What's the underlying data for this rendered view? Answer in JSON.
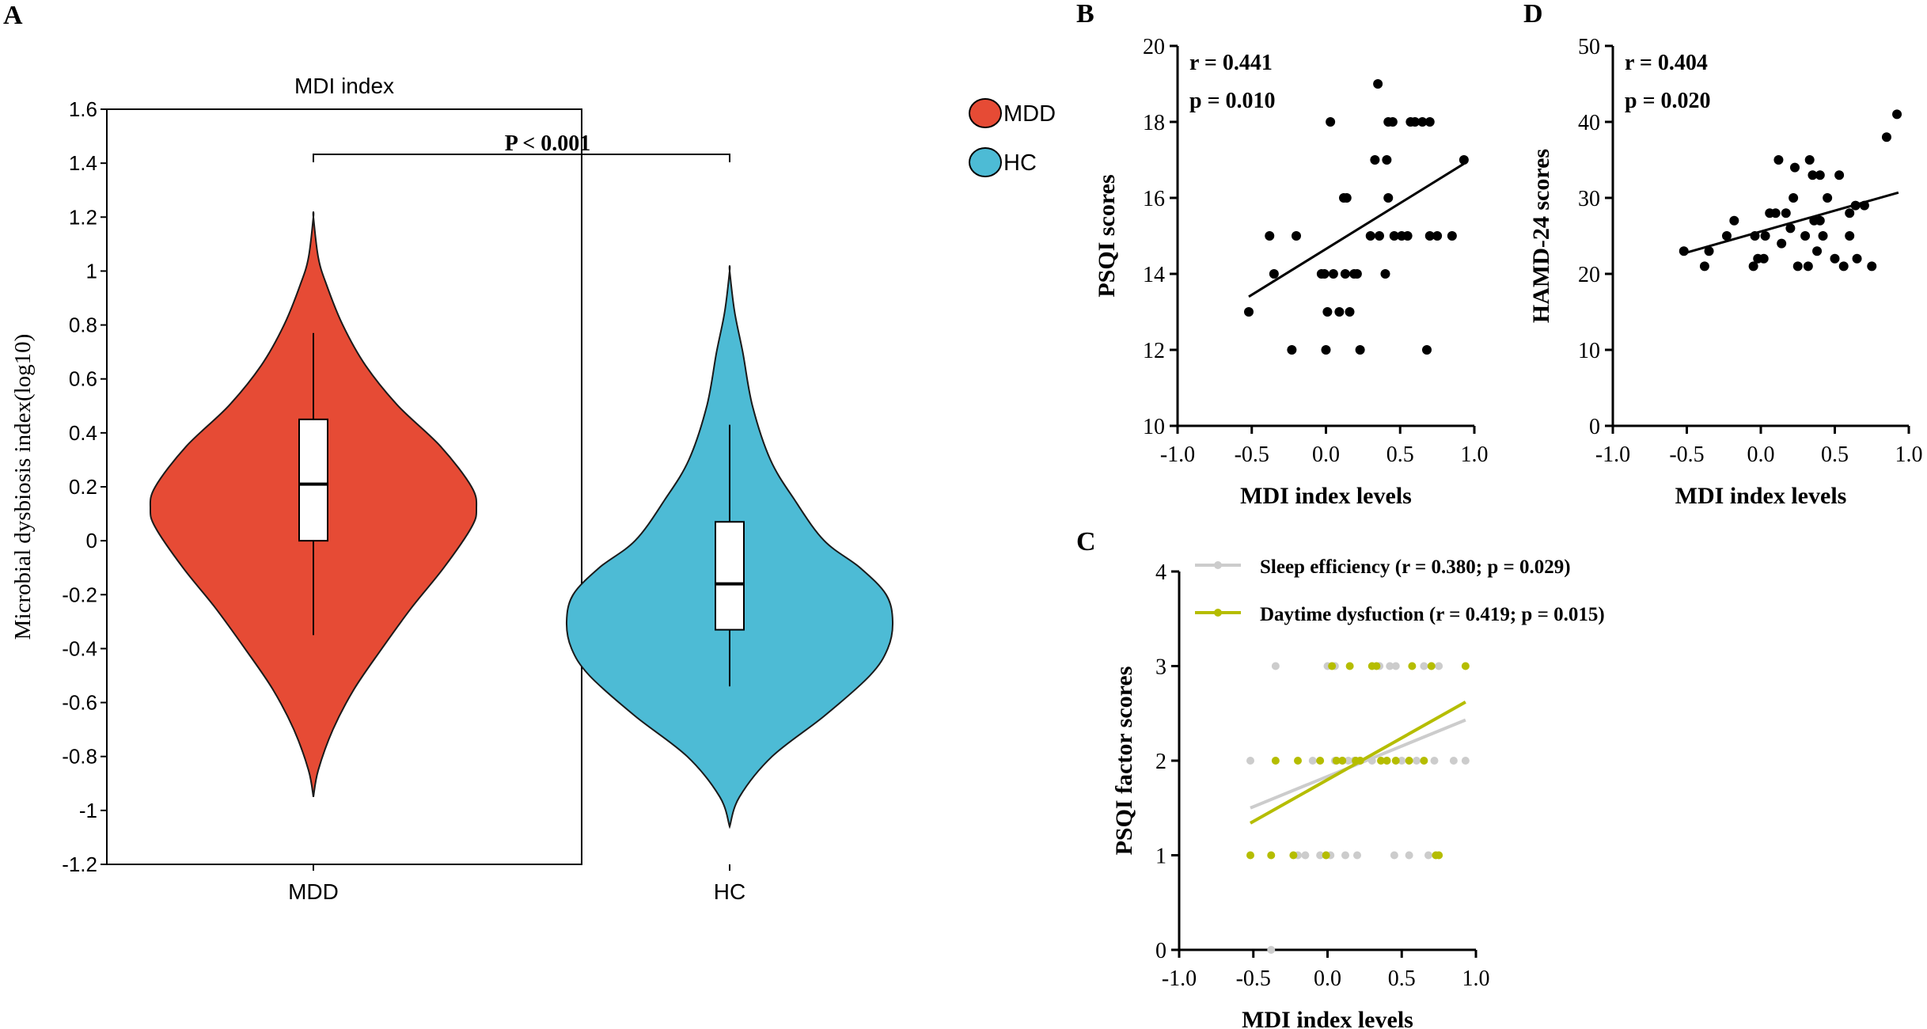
{
  "chart_data": [
    {
      "panel": "A",
      "type": "violin",
      "title": "MDI index",
      "xlabel": "",
      "ylabel": "Microbial dysbiosis index(log10)",
      "ylim": [
        -1.2,
        1.6
      ],
      "yticks": [
        "1.6",
        "1.4",
        "1.2",
        "1",
        "0.8",
        "0.6",
        "0.4",
        "0.2",
        "0",
        "-0.2",
        "-0.4",
        "-0.6",
        "-0.8",
        "-1",
        "-1.2"
      ],
      "categories": [
        "MDD",
        "HC"
      ],
      "significance": "P < 0.001",
      "legend": [
        {
          "label": "MDD",
          "color": "#E64B35"
        },
        {
          "label": "HC",
          "color": "#4DBBD5"
        }
      ],
      "groups": [
        {
          "name": "MDD",
          "color": "#E64B35",
          "whisker_low": -0.35,
          "q1": 0.0,
          "median": 0.21,
          "q3": 0.45,
          "whisker_high": 0.77,
          "violin_range": [
            -0.95,
            1.2
          ],
          "density": [
            [
              -0.95,
              0.0
            ],
            [
              -0.85,
              0.03
            ],
            [
              -0.7,
              0.12
            ],
            [
              -0.55,
              0.25
            ],
            [
              -0.4,
              0.42
            ],
            [
              -0.25,
              0.6
            ],
            [
              -0.1,
              0.8
            ],
            [
              0.05,
              0.97
            ],
            [
              0.12,
              1.0
            ],
            [
              0.2,
              0.97
            ],
            [
              0.35,
              0.78
            ],
            [
              0.5,
              0.52
            ],
            [
              0.65,
              0.32
            ],
            [
              0.8,
              0.18
            ],
            [
              0.95,
              0.08
            ],
            [
              1.05,
              0.03
            ],
            [
              1.2,
              0.0
            ]
          ]
        },
        {
          "name": "HC",
          "color": "#4DBBD5",
          "whisker_low": -0.54,
          "q1": -0.33,
          "median": -0.16,
          "q3": 0.07,
          "whisker_high": 0.43,
          "violin_range": [
            -1.06,
            1.0
          ],
          "density": [
            [
              -1.06,
              0.0
            ],
            [
              -0.95,
              0.06
            ],
            [
              -0.8,
              0.26
            ],
            [
              -0.65,
              0.58
            ],
            [
              -0.5,
              0.86
            ],
            [
              -0.4,
              0.97
            ],
            [
              -0.3,
              1.0
            ],
            [
              -0.2,
              0.96
            ],
            [
              -0.1,
              0.8
            ],
            [
              0.0,
              0.58
            ],
            [
              0.15,
              0.4
            ],
            [
              0.3,
              0.25
            ],
            [
              0.5,
              0.14
            ],
            [
              0.7,
              0.08
            ],
            [
              0.85,
              0.03
            ],
            [
              1.0,
              0.0
            ]
          ]
        }
      ]
    },
    {
      "panel": "B",
      "type": "scatter",
      "xlabel": "MDI index levels",
      "ylabel": "PSQI scores",
      "xlim": [
        -1.0,
        1.0
      ],
      "ylim": [
        10,
        20
      ],
      "xticks": [
        "-1.0",
        "-0.5",
        "0.0",
        "0.5",
        "1.0"
      ],
      "yticks": [
        "10",
        "12",
        "14",
        "16",
        "18",
        "20"
      ],
      "annotation": [
        "r = 0.441",
        "p = 0.010"
      ],
      "fit_line": {
        "x": [
          -0.52,
          0.93
        ],
        "y": [
          13.4,
          16.9
        ]
      },
      "points": [
        [
          -0.52,
          13
        ],
        [
          -0.38,
          15
        ],
        [
          -0.35,
          14
        ],
        [
          -0.23,
          12
        ],
        [
          -0.2,
          15
        ],
        [
          -0.03,
          14
        ],
        [
          -0.01,
          14
        ],
        [
          0.0,
          12
        ],
        [
          0.01,
          13
        ],
        [
          0.03,
          18
        ],
        [
          0.05,
          14
        ],
        [
          0.09,
          13
        ],
        [
          0.12,
          16
        ],
        [
          0.13,
          14
        ],
        [
          0.14,
          16
        ],
        [
          0.16,
          13
        ],
        [
          0.19,
          14
        ],
        [
          0.21,
          14
        ],
        [
          0.23,
          12
        ],
        [
          0.3,
          15
        ],
        [
          0.33,
          17
        ],
        [
          0.35,
          19
        ],
        [
          0.36,
          15
        ],
        [
          0.4,
          14
        ],
        [
          0.41,
          17
        ],
        [
          0.42,
          16
        ],
        [
          0.42,
          18
        ],
        [
          0.45,
          18
        ],
        [
          0.46,
          15
        ],
        [
          0.51,
          15
        ],
        [
          0.55,
          15
        ],
        [
          0.57,
          18
        ],
        [
          0.6,
          18
        ],
        [
          0.65,
          18
        ],
        [
          0.68,
          12
        ],
        [
          0.7,
          15
        ],
        [
          0.7,
          18
        ],
        [
          0.75,
          15
        ],
        [
          0.85,
          15
        ],
        [
          0.93,
          17
        ]
      ]
    },
    {
      "panel": "D",
      "type": "scatter",
      "xlabel": "MDI index levels",
      "ylabel": "HAMD-24 scores",
      "xlim": [
        -1.0,
        1.0
      ],
      "ylim": [
        0,
        50
      ],
      "xticks": [
        "-1.0",
        "-0.5",
        "0.0",
        "0.5",
        "1.0"
      ],
      "yticks": [
        "0",
        "10",
        "20",
        "30",
        "40",
        "50"
      ],
      "annotation": [
        "r = 0.404",
        "p = 0.020"
      ],
      "fit_line": {
        "x": [
          -0.52,
          0.93
        ],
        "y": [
          22.7,
          30.7
        ]
      },
      "points": [
        [
          -0.52,
          23
        ],
        [
          -0.38,
          21
        ],
        [
          -0.35,
          23
        ],
        [
          -0.23,
          25
        ],
        [
          -0.18,
          27
        ],
        [
          -0.05,
          21
        ],
        [
          -0.04,
          25
        ],
        [
          -0.02,
          22
        ],
        [
          0.02,
          22
        ],
        [
          0.03,
          25
        ],
        [
          0.06,
          28
        ],
        [
          0.1,
          28
        ],
        [
          0.12,
          35
        ],
        [
          0.14,
          24
        ],
        [
          0.17,
          28
        ],
        [
          0.2,
          26
        ],
        [
          0.22,
          30
        ],
        [
          0.23,
          34
        ],
        [
          0.25,
          21
        ],
        [
          0.3,
          25
        ],
        [
          0.32,
          21
        ],
        [
          0.33,
          35
        ],
        [
          0.35,
          33
        ],
        [
          0.36,
          27
        ],
        [
          0.38,
          23
        ],
        [
          0.4,
          33
        ],
        [
          0.4,
          27
        ],
        [
          0.42,
          25
        ],
        [
          0.45,
          30
        ],
        [
          0.5,
          22
        ],
        [
          0.53,
          33
        ],
        [
          0.56,
          21
        ],
        [
          0.6,
          25
        ],
        [
          0.6,
          28
        ],
        [
          0.64,
          29
        ],
        [
          0.65,
          22
        ],
        [
          0.7,
          29
        ],
        [
          0.75,
          21
        ],
        [
          0.85,
          38
        ],
        [
          0.92,
          41
        ]
      ]
    },
    {
      "panel": "C",
      "type": "scatter",
      "xlabel": "MDI index levels",
      "ylabel": "PSQI factor scores",
      "xlim": [
        -1.0,
        1.0
      ],
      "ylim": [
        0,
        4
      ],
      "xticks": [
        "-1.0",
        "-0.5",
        "0.0",
        "0.5",
        "1.0"
      ],
      "yticks": [
        "0",
        "1",
        "2",
        "3",
        "4"
      ],
      "series": [
        {
          "name": "Sleep efficiency (r = 0.380; p = 0.029)",
          "color": "#CCCCCC",
          "fit_line": {
            "x": [
              -0.52,
              0.93
            ],
            "y": [
              1.5,
              2.43
            ]
          },
          "points": [
            [
              -0.38,
              0
            ],
            [
              -0.35,
              3
            ],
            [
              -0.52,
              2
            ],
            [
              -0.2,
              1
            ],
            [
              -0.15,
              1
            ],
            [
              -0.1,
              2
            ],
            [
              -0.05,
              1
            ],
            [
              -0.01,
              1
            ],
            [
              0.0,
              3
            ],
            [
              0.02,
              1
            ],
            [
              0.05,
              2
            ],
            [
              0.05,
              3
            ],
            [
              0.1,
              2
            ],
            [
              0.12,
              1
            ],
            [
              0.14,
              2
            ],
            [
              0.18,
              2
            ],
            [
              0.2,
              1
            ],
            [
              0.22,
              2
            ],
            [
              0.3,
              2
            ],
            [
              0.35,
              3
            ],
            [
              0.4,
              2
            ],
            [
              0.42,
              3
            ],
            [
              0.45,
              1
            ],
            [
              0.46,
              3
            ],
            [
              0.5,
              2
            ],
            [
              0.55,
              1
            ],
            [
              0.6,
              2
            ],
            [
              0.65,
              3
            ],
            [
              0.68,
              1
            ],
            [
              0.7,
              3
            ],
            [
              0.72,
              2
            ],
            [
              0.75,
              3
            ],
            [
              0.85,
              2
            ],
            [
              0.93,
              2
            ]
          ]
        },
        {
          "name": "Daytime dysfuction (r = 0.419; p = 0.015)",
          "color": "#B5BD00",
          "fit_line": {
            "x": [
              -0.52,
              0.93
            ],
            "y": [
              1.34,
              2.62
            ]
          },
          "points": [
            [
              -0.52,
              1
            ],
            [
              -0.38,
              1
            ],
            [
              -0.35,
              2
            ],
            [
              -0.23,
              1
            ],
            [
              -0.2,
              2
            ],
            [
              -0.05,
              2
            ],
            [
              -0.01,
              1
            ],
            [
              0.03,
              3
            ],
            [
              0.06,
              2
            ],
            [
              0.1,
              2
            ],
            [
              0.15,
              3
            ],
            [
              0.19,
              2
            ],
            [
              0.22,
              2
            ],
            [
              0.3,
              3
            ],
            [
              0.33,
              3
            ],
            [
              0.36,
              2
            ],
            [
              0.4,
              2
            ],
            [
              0.46,
              2
            ],
            [
              0.55,
              2
            ],
            [
              0.57,
              3
            ],
            [
              0.65,
              2
            ],
            [
              0.7,
              3
            ],
            [
              0.73,
              1
            ],
            [
              0.75,
              1
            ],
            [
              0.93,
              3
            ]
          ]
        }
      ]
    }
  ],
  "labels": {
    "panel_a": "A",
    "panel_b": "B",
    "panel_c": "C",
    "panel_d": "D"
  }
}
